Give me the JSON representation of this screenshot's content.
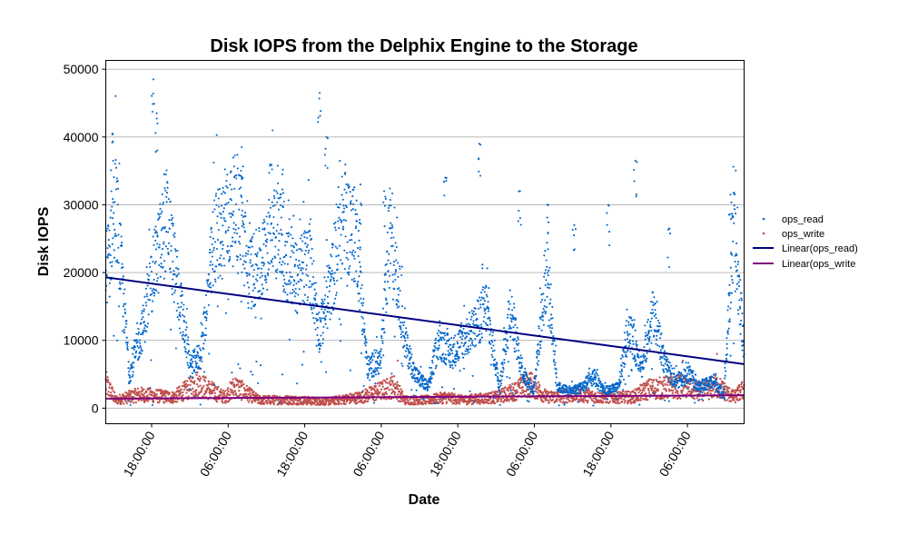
{
  "chart_data": {
    "type": "scatter",
    "title": "Disk IOPS from the Delphix Engine to the Storage",
    "xlabel": "Date",
    "ylabel": "Disk IOPS",
    "x_ticks": [
      "18:00:00",
      "06:00:00",
      "18:00:00",
      "06:00:00",
      "18:00:00",
      "06:00:00",
      "18:00:00",
      "06:00:00"
    ],
    "y_ticks": [
      "0",
      "10000",
      "20000",
      "30000",
      "40000",
      "50000"
    ],
    "ylim": [
      -2300,
      51300
    ],
    "grid": "horizontal",
    "legend_position": "right",
    "legend": {
      "read_points": "ops_read",
      "write_points": "ops_write",
      "read_trend": "Linear(ops_read)",
      "write_trend": "Linear(ops_write"
    },
    "series_colors": {
      "ops_read": "#0066cc",
      "ops_write": "#c0504d",
      "linear_read": "#000080",
      "linear_write": "#800080"
    },
    "read_profile": [
      [
        0,
        20000
      ],
      [
        0.03,
        30000
      ],
      [
        0.07,
        5000
      ],
      [
        0.11,
        12000
      ],
      [
        0.14,
        20000
      ],
      [
        0.18,
        28000
      ],
      [
        0.21,
        18000
      ],
      [
        0.25,
        6000
      ],
      [
        0.28,
        8000
      ],
      [
        0.32,
        25000
      ],
      [
        0.35,
        27000
      ],
      [
        0.39,
        30000
      ],
      [
        0.42,
        20000
      ],
      [
        0.46,
        21000
      ],
      [
        0.49,
        30000
      ],
      [
        0.53,
        22000
      ],
      [
        0.56,
        19000
      ],
      [
        0.6,
        22000
      ],
      [
        0.63,
        11000
      ],
      [
        0.67,
        20000
      ],
      [
        0.7,
        28000
      ],
      [
        0.74,
        25000
      ],
      [
        0.77,
        6000
      ],
      [
        0.81,
        7000
      ],
      [
        0.84,
        28000
      ],
      [
        0.88,
        10000
      ],
      [
        0.91,
        5000
      ],
      [
        0.95,
        3000
      ],
      [
        0.98,
        10000
      ],
      [
        1.02,
        8000
      ],
      [
        1.05,
        10000
      ],
      [
        1.09,
        12000
      ],
      [
        1.12,
        15000
      ],
      [
        1.16,
        3000
      ],
      [
        1.19,
        15000
      ],
      [
        1.23,
        5000
      ],
      [
        1.26,
        2500
      ],
      [
        1.3,
        21000
      ],
      [
        1.33,
        3000
      ],
      [
        1.37,
        2500
      ],
      [
        1.4,
        3000
      ],
      [
        1.44,
        4500
      ],
      [
        1.47,
        2500
      ],
      [
        1.51,
        3000
      ],
      [
        1.54,
        12000
      ],
      [
        1.58,
        6000
      ],
      [
        1.61,
        14000
      ],
      [
        1.65,
        6000
      ],
      [
        1.68,
        4000
      ],
      [
        1.72,
        5000
      ],
      [
        1.75,
        3000
      ],
      [
        1.79,
        4000
      ],
      [
        1.82,
        2000
      ],
      [
        1.85,
        26000
      ],
      [
        1.88,
        9000
      ]
    ],
    "read_spikes": [
      [
        0.02,
        40500
      ],
      [
        0.14,
        48500
      ],
      [
        0.15,
        43500
      ],
      [
        0.4,
        38500
      ],
      [
        0.52,
        34500
      ],
      [
        0.63,
        46500
      ],
      [
        0.65,
        40000
      ],
      [
        0.75,
        33000
      ],
      [
        0.82,
        32000
      ],
      [
        1.0,
        34000
      ],
      [
        1.1,
        39000
      ],
      [
        1.22,
        32000
      ],
      [
        1.3,
        30000
      ],
      [
        1.38,
        27000
      ],
      [
        1.48,
        30000
      ],
      [
        1.56,
        36500
      ],
      [
        1.66,
        26500
      ],
      [
        1.84,
        31500
      ]
    ],
    "write_profile": [
      [
        0,
        4500
      ],
      [
        0.03,
        1500
      ],
      [
        0.1,
        2500
      ],
      [
        0.2,
        2000
      ],
      [
        0.27,
        4500
      ],
      [
        0.35,
        2000
      ],
      [
        0.38,
        4000
      ],
      [
        0.45,
        1500
      ],
      [
        0.55,
        1500
      ],
      [
        0.65,
        1200
      ],
      [
        0.75,
        2000
      ],
      [
        0.8,
        3000
      ],
      [
        0.85,
        4000
      ],
      [
        0.88,
        1500
      ],
      [
        0.95,
        1500
      ],
      [
        1.0,
        2000
      ],
      [
        1.05,
        1500
      ],
      [
        1.15,
        2000
      ],
      [
        1.2,
        3000
      ],
      [
        1.25,
        4500
      ],
      [
        1.3,
        2000
      ],
      [
        1.4,
        2500
      ],
      [
        1.45,
        2000
      ],
      [
        1.55,
        2000
      ],
      [
        1.6,
        3500
      ],
      [
        1.7,
        4000
      ],
      [
        1.75,
        3000
      ],
      [
        1.8,
        4000
      ],
      [
        1.85,
        2000
      ],
      [
        1.88,
        3500
      ]
    ],
    "write_spikes": [
      [
        0.28,
        5800
      ],
      [
        0.8,
        5500
      ],
      [
        0.86,
        7000
      ],
      [
        1.22,
        6000
      ],
      [
        1.7,
        7000
      ],
      [
        1.8,
        8000
      ]
    ],
    "linear_read": [
      [
        0,
        19300
      ],
      [
        1.88,
        6500
      ]
    ],
    "linear_write": [
      [
        0,
        1400
      ],
      [
        1.88,
        1900
      ]
    ]
  }
}
